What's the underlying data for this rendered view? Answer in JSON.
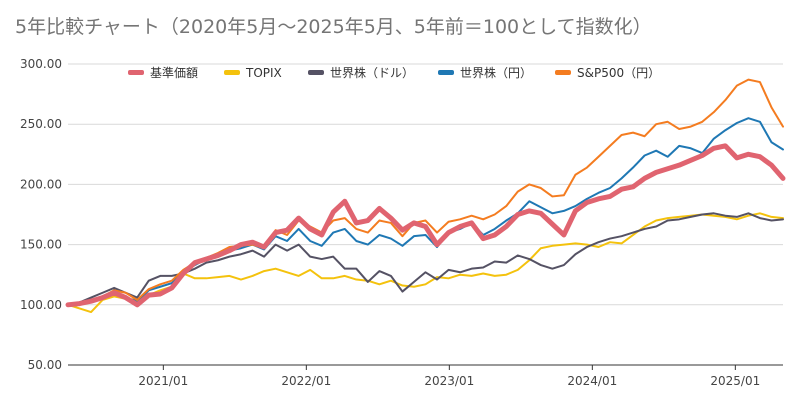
{
  "chart_data": {
    "type": "line",
    "title": "5年比較チャート（2020年5月〜2025年5月、5年前＝100として指数化）",
    "xlabel": "",
    "ylabel": "",
    "ylim": [
      50,
      300
    ],
    "yticks": [
      "50.00",
      "100.00",
      "150.00",
      "200.00",
      "250.00",
      "300.00"
    ],
    "xticks": [
      "2021/01",
      "2022/01",
      "2023/01",
      "2024/01",
      "2025/01"
    ],
    "x_start": "2020/05",
    "x_end": "2025/05",
    "grid": "horizontal",
    "legend_position": "top",
    "series": [
      {
        "name": "基準価額",
        "color": "#e06470",
        "values": [
          100,
          101,
          103,
          106,
          110,
          106,
          100,
          108,
          109,
          114,
          126,
          135,
          138,
          141,
          145,
          150,
          152,
          148,
          160,
          162,
          172,
          163,
          158,
          177,
          186,
          168,
          170,
          180,
          172,
          162,
          168,
          165,
          150,
          160,
          165,
          168,
          155,
          158,
          165,
          175,
          178,
          176,
          167,
          158,
          178,
          185,
          188,
          190,
          196,
          198,
          205,
          210,
          213,
          216,
          220,
          224,
          230,
          232,
          222,
          225,
          223,
          216,
          205
        ]
      },
      {
        "name": "TOPIX",
        "color": "#f4c20d",
        "values": [
          100,
          97,
          94,
          104,
          107,
          105,
          104,
          108,
          112,
          115,
          126,
          122,
          122,
          123,
          124,
          121,
          124,
          128,
          130,
          127,
          124,
          129,
          122,
          122,
          124,
          121,
          120,
          117,
          120,
          116,
          115,
          117,
          123,
          122,
          125,
          124,
          126,
          124,
          125,
          129,
          137,
          147,
          149,
          150,
          151,
          150,
          148,
          152,
          151,
          158,
          165,
          170,
          172,
          173,
          174,
          175,
          174,
          173,
          171,
          174,
          176,
          173,
          172
        ]
      },
      {
        "name": "世界株（ドル）",
        "color": "#555264",
        "values": [
          100,
          102,
          106,
          110,
          114,
          110,
          106,
          120,
          124,
          124,
          126,
          130,
          135,
          137,
          140,
          142,
          145,
          140,
          150,
          145,
          150,
          140,
          138,
          140,
          130,
          130,
          119,
          128,
          124,
          111,
          119,
          127,
          121,
          129,
          127,
          130,
          131,
          136,
          135,
          141,
          138,
          133,
          130,
          133,
          142,
          148,
          152,
          155,
          157,
          160,
          163,
          165,
          170,
          171,
          173,
          175,
          176,
          174,
          173,
          176,
          172,
          170,
          171
        ]
      },
      {
        "name": "世界株（円）",
        "color": "#1f78b4",
        "values": [
          100,
          101,
          102,
          106,
          110,
          106,
          103,
          112,
          115,
          118,
          128,
          133,
          138,
          140,
          145,
          147,
          150,
          146,
          157,
          153,
          163,
          153,
          149,
          160,
          163,
          153,
          150,
          158,
          155,
          149,
          157,
          158,
          148,
          160,
          163,
          168,
          158,
          163,
          170,
          176,
          186,
          181,
          176,
          178,
          182,
          188,
          193,
          197,
          205,
          214,
          224,
          228,
          223,
          232,
          230,
          226,
          238,
          245,
          251,
          255,
          252,
          235,
          229
        ]
      },
      {
        "name": "S&P500（円）",
        "color": "#f47c20",
        "values": [
          100,
          101,
          103,
          107,
          112,
          110,
          104,
          113,
          117,
          120,
          129,
          135,
          139,
          143,
          148,
          149,
          150,
          147,
          162,
          158,
          170,
          165,
          160,
          170,
          172,
          163,
          160,
          170,
          168,
          157,
          168,
          170,
          160,
          169,
          171,
          174,
          171,
          175,
          182,
          194,
          200,
          197,
          190,
          191,
          208,
          214,
          223,
          232,
          241,
          243,
          240,
          250,
          252,
          246,
          248,
          252,
          260,
          270,
          282,
          287,
          285,
          264,
          248
        ]
      }
    ]
  }
}
